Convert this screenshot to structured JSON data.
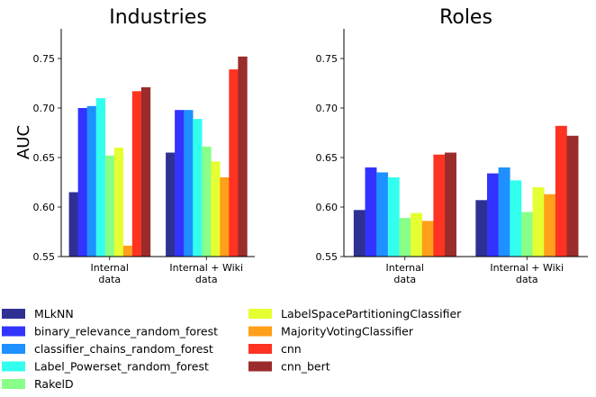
{
  "chart_data": {
    "type": "bar",
    "ylabel": "AUC",
    "ylim": [
      0.55,
      0.78
    ],
    "yticks": [
      "0.55",
      "0.60",
      "0.65",
      "0.70",
      "0.75"
    ],
    "series_names": [
      "MLkNN",
      "binary_relevance_random_forest",
      "classifier_chains_random_forest",
      "Label_Powerset_random_forest",
      "RakelD",
      "LabelSpacePartitioningClassifier",
      "MajorityVotingClassifier",
      "cnn",
      "cnn_bert"
    ],
    "colors": [
      "#2e3192",
      "#3333ff",
      "#1e90ff",
      "#33ffee",
      "#88ff88",
      "#e5ff33",
      "#ff9f1a",
      "#ff3322",
      "#9b2c2c"
    ],
    "panels": [
      {
        "title": "Industries",
        "categories": [
          "Internal\ndata",
          "Internal + Wiki\ndata"
        ],
        "values": [
          [
            0.615,
            0.7,
            0.702,
            0.71,
            0.652,
            0.66,
            0.561,
            0.717,
            0.721
          ],
          [
            0.655,
            0.698,
            0.698,
            0.689,
            0.661,
            0.646,
            0.63,
            0.739,
            0.752
          ]
        ]
      },
      {
        "title": "Roles",
        "categories": [
          "Internal\ndata",
          "Internal + Wiki\ndata"
        ],
        "values": [
          [
            0.597,
            0.64,
            0.635,
            0.63,
            0.589,
            0.594,
            0.586,
            0.653,
            0.655
          ],
          [
            0.607,
            0.634,
            0.64,
            0.627,
            0.595,
            0.62,
            0.613,
            0.682,
            0.672
          ]
        ]
      }
    ],
    "legend_position": "bottom"
  }
}
